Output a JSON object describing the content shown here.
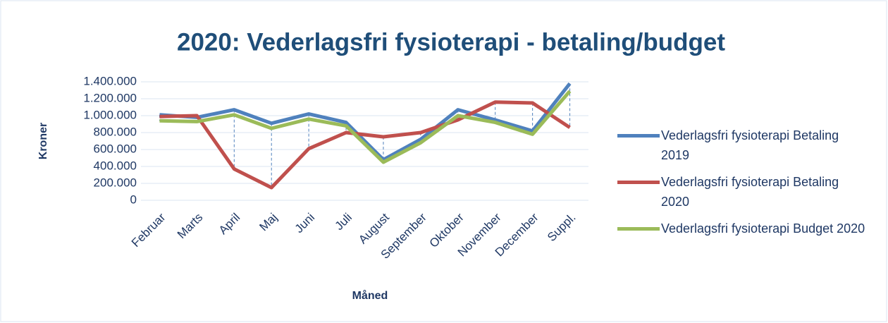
{
  "chart_data": {
    "type": "line",
    "title": "2020: Vederlagsfri fysioterapi - betaling/budget",
    "x_label": "Måned",
    "y_label": "Kroner",
    "categories": [
      "Februar",
      "Marts",
      "April",
      "Maj",
      "Juni",
      "Juli",
      "August",
      "September",
      "Oktober",
      "November",
      "December",
      "Suppl."
    ],
    "series": [
      {
        "name": "Vederlagsfri fysioterapi Betaling 2019",
        "color": "#4f81bd",
        "values": [
          1010000,
          980000,
          1070000,
          910000,
          1020000,
          920000,
          480000,
          720000,
          1070000,
          950000,
          820000,
          1380000
        ]
      },
      {
        "name": "Vederlagsfri fysioterapi Betaling 2020",
        "color": "#c0504d",
        "values": [
          990000,
          1000000,
          370000,
          150000,
          610000,
          800000,
          750000,
          800000,
          950000,
          1160000,
          1150000,
          860000
        ]
      },
      {
        "name": "Vederlagsfri fysioterapi Budget 2020",
        "color": "#9bbb59",
        "values": [
          940000,
          930000,
          1010000,
          850000,
          960000,
          880000,
          450000,
          680000,
          1000000,
          920000,
          780000,
          1290000
        ]
      }
    ],
    "ylim": [
      0,
      1400000
    ],
    "yticks": [
      0,
      {
        "value": 200000,
        "label": "200.000"
      },
      {
        "value": 400000,
        "label": "400.000"
      },
      {
        "value": 600000,
        "label": "600.000"
      },
      {
        "value": 800000,
        "label": "800.000"
      },
      {
        "value": 1000000,
        "label": "1.000.000"
      },
      {
        "value": 1200000,
        "label": "1.200.000"
      },
      {
        "value": 1400000,
        "label": "1.400.000"
      }
    ],
    "grid": true,
    "high_low_lines": true,
    "legend": "right"
  }
}
